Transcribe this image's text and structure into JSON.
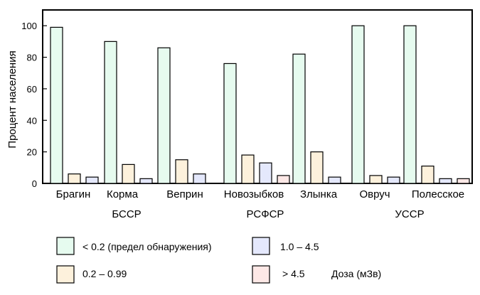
{
  "chart_data": {
    "type": "bar",
    "ylabel": "Процент населения",
    "ylim": [
      0,
      110
    ],
    "yticks": [
      0,
      20,
      40,
      60,
      80,
      100
    ],
    "categories": [
      "Брагин",
      "Корма",
      "Веприн",
      "Новозыбков",
      "Злынка",
      "Овруч",
      "Полесское"
    ],
    "groups": [
      {
        "label": "БССР",
        "categories": [
          "Брагин",
          "Корма",
          "Веприн"
        ]
      },
      {
        "label": "РСФСР",
        "categories": [
          "Новозыбков",
          "Злынка"
        ]
      },
      {
        "label": "УССР",
        "categories": [
          "Овруч",
          "Полесское"
        ]
      }
    ],
    "series": [
      {
        "name": "< 0.2 (предел обнаружения)",
        "color": "#e6fbef",
        "values": [
          99,
          90,
          86,
          76,
          82,
          100,
          100
        ]
      },
      {
        "name": "0.2 – 0.99",
        "color": "#fdf1dc",
        "values": [
          6,
          12,
          15,
          18,
          20,
          5,
          11
        ]
      },
      {
        "name": "1.0 – 4.5",
        "color": "#e4e8fc",
        "values": [
          4,
          3,
          6,
          13,
          4,
          4,
          3
        ]
      },
      {
        "name": "> 4.5",
        "color": "#fde8e6",
        "values": [
          0,
          0,
          0,
          5,
          0,
          0,
          3
        ]
      }
    ],
    "legend_title": "Доза (мЗв)",
    "legend_position": "bottom",
    "grid": false
  }
}
